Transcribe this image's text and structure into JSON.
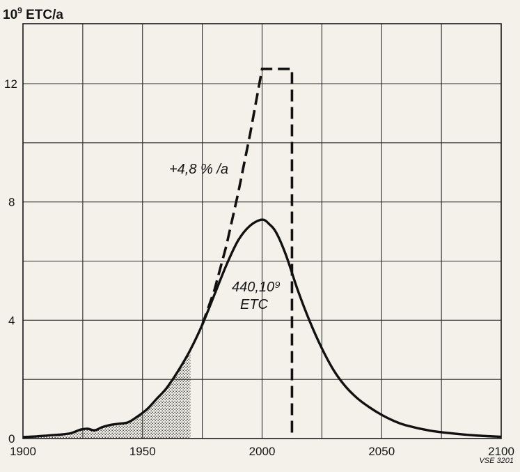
{
  "chart_data": {
    "type": "line",
    "ylabel": "10⁹ ETC/a",
    "ylabel_base": "10",
    "ylabel_exp": "9",
    "ylabel_unit": " ETC/a",
    "xlim": [
      1900,
      2100
    ],
    "ylim": [
      0,
      14.5
    ],
    "x_ticks": [
      1900,
      1950,
      2000,
      2050,
      2100
    ],
    "y_ticks": [
      0,
      4,
      8,
      12
    ],
    "x_grid": [
      1900,
      1925,
      1950,
      1975,
      2000,
      2025,
      2050,
      2075,
      2100
    ],
    "y_grid": [
      0,
      2,
      4,
      6,
      8,
      10,
      12
    ],
    "grid": true,
    "series": [
      {
        "style": "solid",
        "x": [
          1900,
          1905,
          1910,
          1915,
          1920,
          1924,
          1927,
          1930,
          1933,
          1936,
          1940,
          1944,
          1948,
          1952,
          1956,
          1960,
          1965,
          1970,
          1975,
          1980,
          1985,
          1990,
          1995,
          2000,
          2003,
          2006,
          2010,
          2015,
          2020,
          2025,
          2030,
          2035,
          2040,
          2045,
          2050,
          2055,
          2060,
          2070,
          2080,
          2090,
          2100
        ],
        "y": [
          0.05,
          0.07,
          0.1,
          0.13,
          0.18,
          0.3,
          0.33,
          0.28,
          0.38,
          0.45,
          0.5,
          0.55,
          0.75,
          1.0,
          1.35,
          1.7,
          2.3,
          3.0,
          3.85,
          4.85,
          5.85,
          6.7,
          7.2,
          7.4,
          7.25,
          6.95,
          6.2,
          5.0,
          3.95,
          3.05,
          2.3,
          1.75,
          1.35,
          1.05,
          0.8,
          0.6,
          0.45,
          0.27,
          0.17,
          0.1,
          0.06
        ]
      },
      {
        "style": "dashed",
        "x": [
          1975,
          1980,
          1985,
          1990,
          1995,
          2000,
          2012.5,
          2012.5
        ],
        "y": [
          3.85,
          5.0,
          6.5,
          8.3,
          10.3,
          12.5,
          12.5,
          0
        ]
      }
    ],
    "shaded_area": {
      "x_from": 1900,
      "x_to": 1970,
      "pattern": "dotted"
    },
    "annotations": {
      "growth": "+4,8 % /a",
      "cumulative_line1": "440,10⁹",
      "cumulative_line2": "ETC"
    },
    "figure_code": "VSE 3201"
  }
}
